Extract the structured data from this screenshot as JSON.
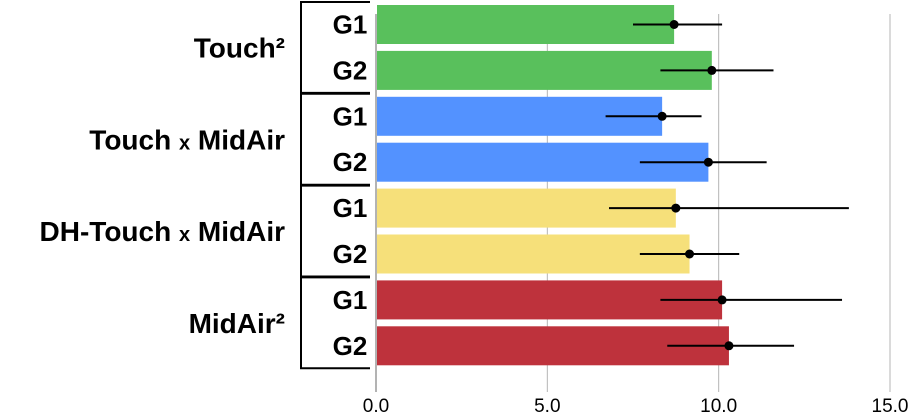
{
  "chart_data": {
    "type": "bar",
    "orientation": "horizontal",
    "title": "",
    "xlabel": "",
    "ylabel": "",
    "xlim": [
      0,
      15
    ],
    "x_ticks": [
      "0.0",
      "5.0",
      "10.0",
      "15.0"
    ],
    "grid": "vertical",
    "legend": "none",
    "groups": [
      {
        "label": "Touch²",
        "label_parts": [
          "Touch²"
        ],
        "color": "#59c05c",
        "rows": [
          {
            "label": "G1",
            "value": 8.7,
            "mean": 8.7,
            "err_low": 7.5,
            "err_high": 10.1
          },
          {
            "label": "G2",
            "value": 9.8,
            "mean": 9.8,
            "err_low": 8.3,
            "err_high": 11.6
          }
        ]
      },
      {
        "label": "Touch x MidAir",
        "label_parts": [
          "Touch ",
          "x",
          " MidAir"
        ],
        "color": "#5392ff",
        "rows": [
          {
            "label": "G1",
            "value": 8.35,
            "mean": 8.35,
            "err_low": 6.7,
            "err_high": 9.5
          },
          {
            "label": "G2",
            "value": 9.7,
            "mean": 9.7,
            "err_low": 7.7,
            "err_high": 11.4
          }
        ]
      },
      {
        "label": "DH-Touch x MidAir",
        "label_parts": [
          "DH-Touch ",
          "x",
          " MidAir"
        ],
        "color": "#f6e07a",
        "rows": [
          {
            "label": "G1",
            "value": 8.75,
            "mean": 8.75,
            "err_low": 6.8,
            "err_high": 13.8
          },
          {
            "label": "G2",
            "value": 9.15,
            "mean": 9.15,
            "err_low": 7.7,
            "err_high": 10.6
          }
        ]
      },
      {
        "label": "MidAir²",
        "label_parts": [
          "MidAir²"
        ],
        "color": "#be323c",
        "rows": [
          {
            "label": "G1",
            "value": 10.1,
            "mean": 10.1,
            "err_low": 8.3,
            "err_high": 13.6
          },
          {
            "label": "G2",
            "value": 10.3,
            "mean": 10.3,
            "err_low": 8.5,
            "err_high": 12.2
          }
        ]
      }
    ]
  }
}
